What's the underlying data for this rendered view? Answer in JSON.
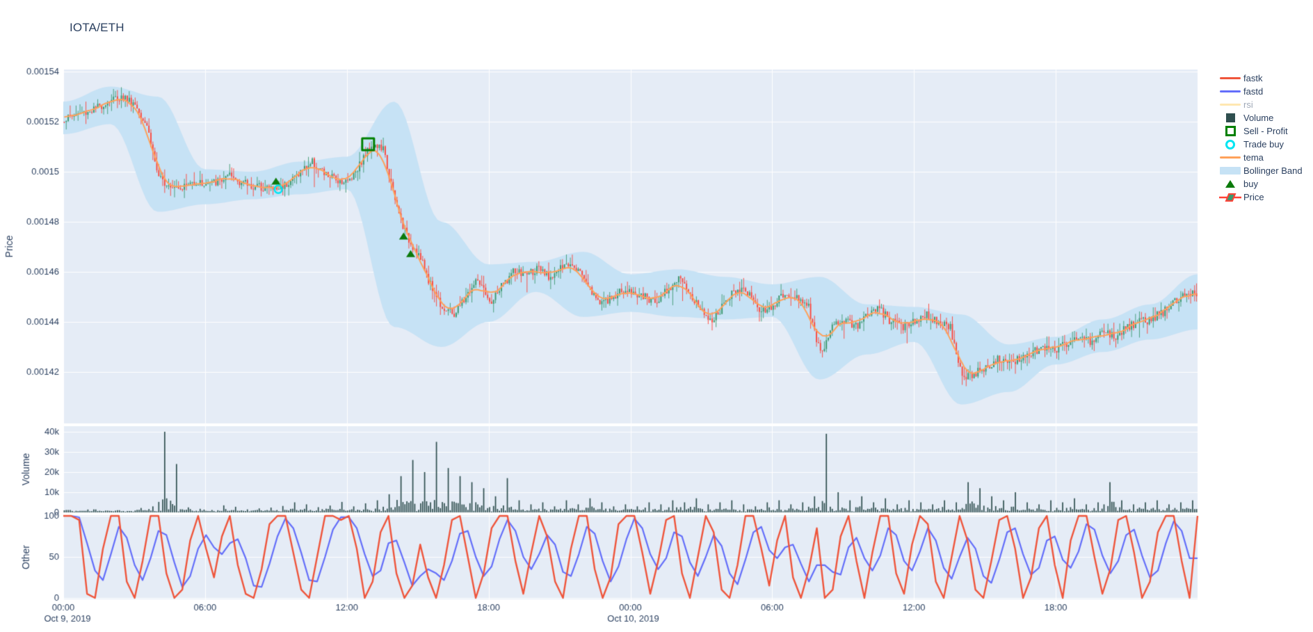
{
  "header": {
    "title": "IOTA/ETH"
  },
  "legend": {
    "items": [
      {
        "key": "fastk",
        "label": "fastk",
        "type": "line",
        "color": "#EF553B",
        "muted": false
      },
      {
        "key": "fastd",
        "label": "fastd",
        "type": "line",
        "color": "#636EFA",
        "muted": false
      },
      {
        "key": "rsi",
        "label": "rsi",
        "type": "line",
        "color": "#FECB52",
        "muted": true
      },
      {
        "key": "volume",
        "label": "Volume",
        "type": "square",
        "color": "#2F4F4F",
        "muted": false
      },
      {
        "key": "sell-profit",
        "label": "Sell - Profit",
        "type": "square-open",
        "color": "#008000",
        "muted": false
      },
      {
        "key": "trade-buy",
        "label": "Trade buy",
        "type": "circle-open",
        "color": "#00E5F2",
        "muted": false
      },
      {
        "key": "tema",
        "label": "tema",
        "type": "line",
        "color": "#FFA15A",
        "muted": false
      },
      {
        "key": "bollinger",
        "label": "Bollinger Band",
        "type": "band",
        "color": "#C6E2F5",
        "muted": false
      },
      {
        "key": "buy",
        "label": "buy",
        "type": "triangle",
        "color": "#0B7A0B",
        "muted": false
      },
      {
        "key": "price",
        "label": "Price",
        "type": "candle",
        "color": "#3D9970",
        "color2": "#FF4136",
        "muted": false
      }
    ]
  },
  "chart_data": {
    "background": "#E5ECF6",
    "grid_color": "#FFFFFF",
    "text_color": "#2a3f5f",
    "xaxis": {
      "range_hours": [
        0,
        48
      ],
      "start": "2019-10-09 00:00",
      "tick_hours": [
        0,
        6,
        12,
        18,
        24,
        30,
        36,
        42
      ],
      "tick_labels": [
        "00:00",
        "06:00",
        "12:00",
        "18:00",
        "00:00",
        "06:00",
        "12:00",
        "18:00"
      ],
      "date_labels": [
        {
          "text": "Oct 9, 2019",
          "t_h": 0
        },
        {
          "text": "Oct 10, 2019",
          "t_h": 24
        }
      ]
    },
    "price": {
      "type": "candlestick",
      "ylabel": "Price",
      "ytick_labels": [
        "0.00154",
        "0.00152",
        "0.0015",
        "0.00148",
        "0.00146",
        "0.00144",
        "0.00142"
      ],
      "yticks": [
        0.00154,
        0.00152,
        0.0015,
        0.00148,
        0.00146,
        0.00144,
        0.00142
      ],
      "ylim": [
        0.001399,
        0.001541
      ],
      "candle_interval_min": 5,
      "close_step_min": 30,
      "close": [
        0.001521,
        0.001523,
        0.001524,
        0.001526,
        0.001529,
        0.00153,
        0.001527,
        0.001519,
        0.001497,
        0.001495,
        0.001494,
        0.001496,
        0.001495,
        0.001496,
        0.001498,
        0.001496,
        0.001494,
        0.001494,
        0.001493,
        0.001496,
        0.0015,
        0.001504,
        0.001499,
        0.001497,
        0.001496,
        0.001503,
        0.001511,
        0.001509,
        0.001488,
        0.001474,
        0.001467,
        0.001455,
        0.001446,
        0.001443,
        0.00145,
        0.001457,
        0.001447,
        0.001454,
        0.00146,
        0.001459,
        0.001461,
        0.001458,
        0.001461,
        0.001464,
        0.001458,
        0.001449,
        0.001448,
        0.001452,
        0.001452,
        0.00145,
        0.001448,
        0.001453,
        0.001457,
        0.001451,
        0.001444,
        0.001441,
        0.001448,
        0.001454,
        0.001451,
        0.001444,
        0.001447,
        0.001451,
        0.00145,
        0.001446,
        0.001427,
        0.001438,
        0.001441,
        0.001438,
        0.001443,
        0.001445,
        0.00144,
        0.001438,
        0.001441,
        0.001443,
        0.00144,
        0.001438,
        0.001417,
        0.001419,
        0.001422,
        0.001425,
        0.001423,
        0.001426,
        0.001428,
        0.00143,
        0.001429,
        0.001432,
        0.001434,
        0.001432,
        0.001436,
        0.001434,
        0.001438,
        0.00144,
        0.001441,
        0.001444,
        0.001448,
        0.001452
      ],
      "tema_note": "tema tracks the close path (smoothed)",
      "bollinger": {
        "step_hours": 2,
        "upper": [
          0.001528,
          0.001534,
          0.00153,
          0.001501,
          0.0015,
          0.001504,
          0.001506,
          0.001528,
          0.00148,
          0.001463,
          0.001464,
          0.001468,
          0.001459,
          0.001461,
          0.001458,
          0.001455,
          0.001458,
          0.001447,
          0.001446,
          0.001443,
          0.001431,
          0.001434,
          0.001441,
          0.001447,
          0.001459
        ],
        "lower": [
          0.001515,
          0.001519,
          0.001484,
          0.001487,
          0.001489,
          0.001491,
          0.001493,
          0.001438,
          0.00143,
          0.00144,
          0.001452,
          0.001442,
          0.001444,
          0.001442,
          0.001441,
          0.001442,
          0.001417,
          0.001427,
          0.001432,
          0.001407,
          0.001412,
          0.001423,
          0.001428,
          0.001433,
          0.001437
        ]
      },
      "markers": {
        "buy": [
          {
            "t_h": 9.0,
            "price": 0.001496
          },
          {
            "t_h": 14.4,
            "price": 0.001474
          },
          {
            "t_h": 14.7,
            "price": 0.001467
          }
        ],
        "trade_buy": [
          {
            "t_h": 9.1,
            "price": 0.001493
          }
        ],
        "sell_profit": [
          {
            "t_h": 12.9,
            "price": 0.001511
          }
        ]
      },
      "colors": {
        "up": "#3D9970",
        "down": "#FF4136",
        "tema": "#FFA15A",
        "band": "#C6E2F5"
      }
    },
    "volume": {
      "type": "bar",
      "ylabel": "Volume",
      "ytick_labels": [
        "40k",
        "30k",
        "20k",
        "10k",
        "0"
      ],
      "yticks_k": [
        40,
        30,
        20,
        10,
        0
      ],
      "ylim_k": [
        0,
        42.8
      ],
      "step_min": 30,
      "values_k": [
        1.2,
        0.8,
        1.5,
        0.9,
        1.1,
        0.7,
        2.2,
        3.0,
        40,
        24,
        2.5,
        1.8,
        1.2,
        3.5,
        2.8,
        1.5,
        2.0,
        2.4,
        3.2,
        5.0,
        4.0,
        2.6,
        3.4,
        5.2,
        3.0,
        4.5,
        6.0,
        9.0,
        18,
        26,
        20,
        35,
        22,
        18,
        15,
        12,
        8,
        17,
        6,
        4,
        5,
        3,
        6,
        4,
        7,
        5,
        3,
        4,
        3,
        5,
        4,
        6,
        5,
        7,
        4,
        5,
        6,
        4,
        3,
        5,
        6,
        4,
        5,
        8,
        39,
        10,
        6,
        8,
        5,
        7,
        4,
        6,
        5,
        4,
        6,
        5,
        15,
        12,
        8,
        6,
        10,
        5,
        4,
        6,
        5,
        7,
        4,
        5,
        15,
        6,
        4,
        5,
        6,
        4,
        5,
        6
      ],
      "color": "#2F4F4F"
    },
    "other": {
      "type": "line",
      "ylabel": "Other",
      "ytick_labels": [
        "100",
        "50",
        "0"
      ],
      "yticks": [
        100,
        50,
        0
      ],
      "ylim": [
        0,
        100
      ],
      "step_min": 20,
      "series": [
        {
          "name": "fastk",
          "color": "#EF553B",
          "values": [
            100,
            100,
            95,
            5,
            0,
            60,
            100,
            100,
            20,
            0,
            45,
            100,
            100,
            30,
            0,
            10,
            70,
            100,
            60,
            25,
            75,
            100,
            40,
            5,
            0,
            35,
            90,
            100,
            100,
            55,
            10,
            0,
            50,
            100,
            100,
            95,
            100,
            60,
            0,
            20,
            80,
            100,
            30,
            0,
            15,
            65,
            25,
            0,
            40,
            95,
            100,
            50,
            0,
            30,
            85,
            100,
            100,
            45,
            5,
            55,
            100,
            75,
            20,
            0,
            60,
            100,
            100,
            35,
            0,
            25,
            90,
            100,
            100,
            55,
            5,
            45,
            95,
            100,
            30,
            0,
            50,
            100,
            80,
            10,
            0,
            40,
            100,
            100,
            60,
            15,
            70,
            100,
            25,
            0,
            35,
            85,
            0,
            10,
            75,
            100,
            45,
            0,
            55,
            100,
            100,
            30,
            5,
            65,
            100,
            90,
            20,
            0,
            50,
            100,
            70,
            10,
            0,
            45,
            95,
            100,
            60,
            0,
            25,
            85,
            100,
            40,
            0,
            70,
            100,
            100,
            50,
            5,
            35,
            95,
            100,
            55,
            0,
            20,
            80,
            100,
            100,
            45,
            0,
            100
          ]
        },
        {
          "name": "fastd",
          "color": "#636EFA",
          "derived": "moving_average_window_3_of_fastk"
        }
      ]
    }
  }
}
